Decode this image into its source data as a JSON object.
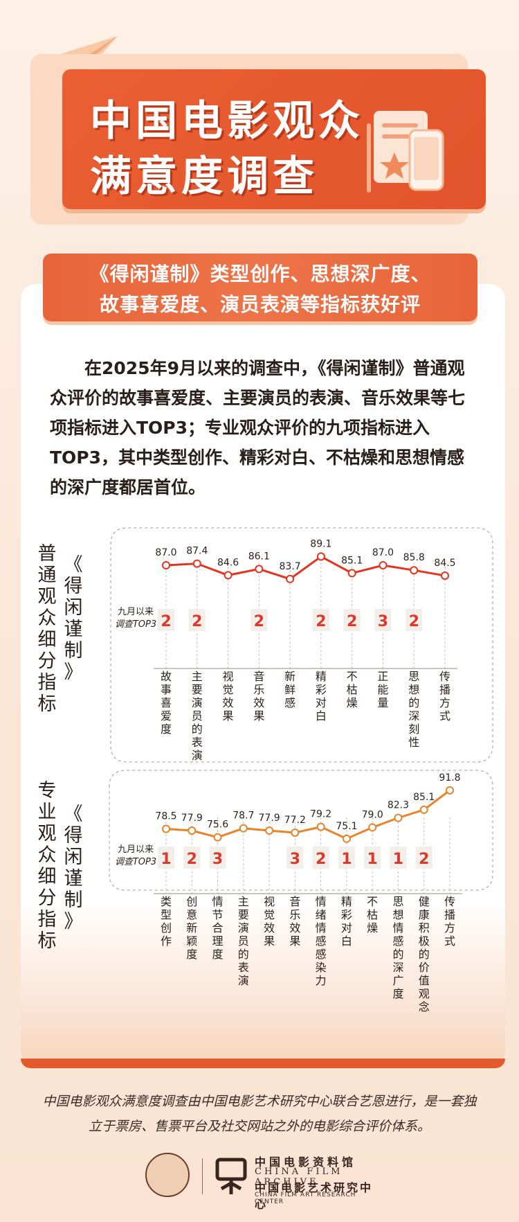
{
  "title": {
    "line1": "中国电影观众",
    "line2": "满意度调查"
  },
  "ribbon": {
    "line1": "《得闲谨制》类型创作、思想深广度、",
    "line2": "故事喜爱度、演员表演等指标获好评"
  },
  "paragraph": "在2025年9月以来的调查中，《得闲谨制》普通观众评价的故事喜爱度、主要演员的表演、音乐效果等七项指标进入TOP3；专业观众评价的九项指标进入TOP3，其中类型创作、精彩对白、不枯燥和思想情感的深广度都居首位。",
  "film_label": "《得闲谨制》",
  "top3_label_line1": "九月以来",
  "top3_label_line2": "调查TOP3",
  "chart_data": [
    {
      "type": "line",
      "side_label": "普通观众细分指标",
      "categories": [
        "故事喜爱度",
        "主要演员的表演",
        "视觉效果",
        "音乐效果",
        "新鲜感",
        "精彩对白",
        "不枯燥",
        "正能量",
        "思想的深刻性",
        "传播方式"
      ],
      "values": [
        87.0,
        87.4,
        84.6,
        86.1,
        83.7,
        89.1,
        85.1,
        87.0,
        85.8,
        84.5
      ],
      "value_labels": [
        "87.0",
        "87.4",
        "84.6",
        "86.1",
        "83.7",
        "89.1",
        "85.1",
        "87.0",
        "85.8",
        "84.5"
      ],
      "top3_ranks": [
        "2",
        "2",
        "",
        "2",
        "",
        "2",
        "2",
        "3",
        "2",
        ""
      ],
      "ylim": [
        82,
        90
      ],
      "color": "#e8331c"
    },
    {
      "type": "line",
      "side_label": "专业观众细分指标",
      "categories": [
        "类型创作",
        "创意新颖度",
        "情节合理度",
        "主要演员的表演",
        "视觉效果",
        "音乐效果",
        "情绪情感感染力",
        "精彩对白",
        "不枯燥",
        "思想情感的深广度",
        "健康积极的价值观念",
        "传播方式"
      ],
      "values": [
        78.5,
        77.9,
        75.6,
        78.7,
        77.9,
        77.2,
        79.2,
        75.1,
        79.0,
        82.3,
        85.1,
        91.8
      ],
      "value_labels": [
        "78.5",
        "77.9",
        "75.6",
        "78.7",
        "77.9",
        "77.2",
        "79.2",
        "75.1",
        "79.0",
        "82.3",
        "85.1",
        "91.8"
      ],
      "top3_ranks": [
        "1",
        "2",
        "3",
        "",
        "",
        "3",
        "2",
        "1",
        "1",
        "1",
        "2",
        ""
      ],
      "ylim": [
        60,
        92
      ],
      "color": "#e8832a"
    }
  ],
  "footer": {
    "line1": "中国电影观众满意度调查由中国电影艺术研究中心联合艺恩进行，是一套独",
    "line2": "立于票房、售票平台及社交网站之外的电影综合评价体系。"
  },
  "logo": {
    "name_cn": "中国电影资料馆",
    "name_en": "CHINA FILM ARCHIVE",
    "center_cn": "中国电影艺术研究中心",
    "center_en": "CHINA FILM ART RESEARCH CENTER"
  },
  "colors": {
    "accent": "#e55a2f",
    "line_general": "#e8331c",
    "line_pro": "#e8832a",
    "rank_text": "#d93a2a"
  }
}
